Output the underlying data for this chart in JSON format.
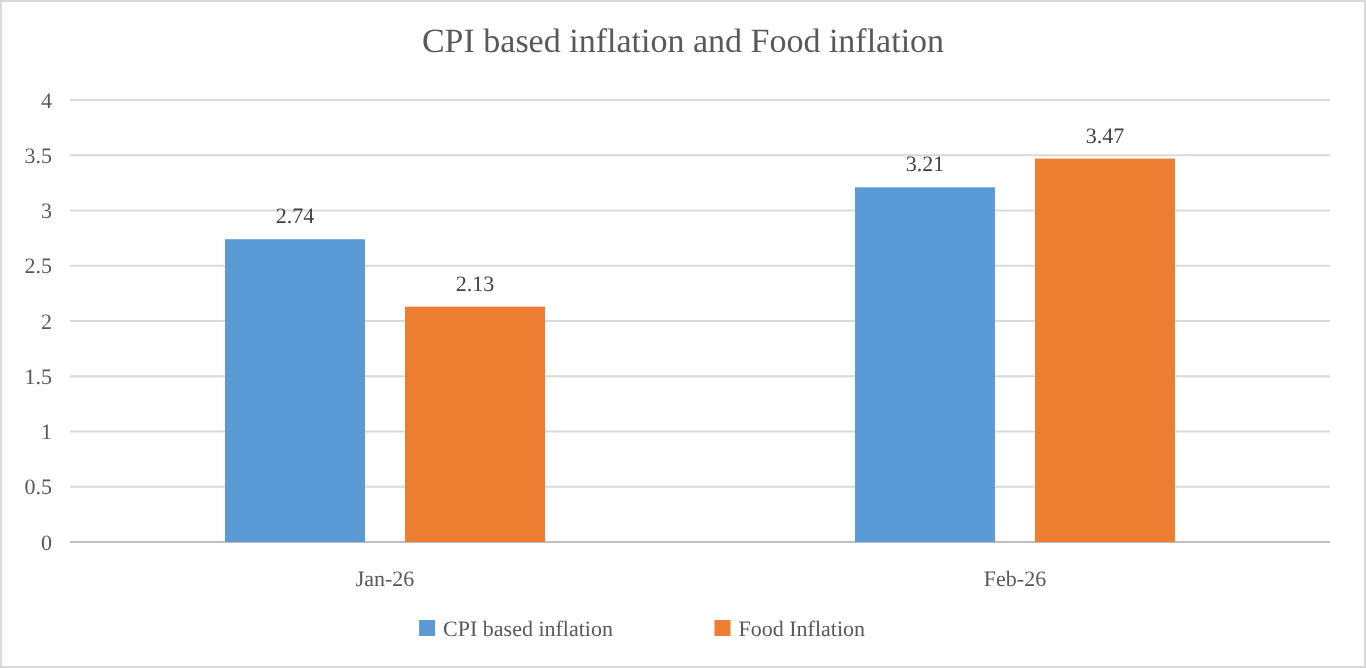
{
  "chart_data": {
    "type": "bar",
    "title": "CPI based inflation and Food inflation",
    "categories": [
      "Jan-26",
      "Feb-26"
    ],
    "series": [
      {
        "name": "CPI based inflation",
        "color": "#5b9bd5",
        "values": [
          2.74,
          3.21
        ]
      },
      {
        "name": "Food Inflation",
        "color": "#ed7d31",
        "values": [
          2.13,
          3.47
        ]
      }
    ],
    "ylim": [
      0,
      4
    ],
    "yticks": [
      0,
      0.5,
      1,
      1.5,
      2,
      2.5,
      3,
      3.5,
      4
    ],
    "grid": "y",
    "legend": "bottom",
    "data_labels": true
  }
}
